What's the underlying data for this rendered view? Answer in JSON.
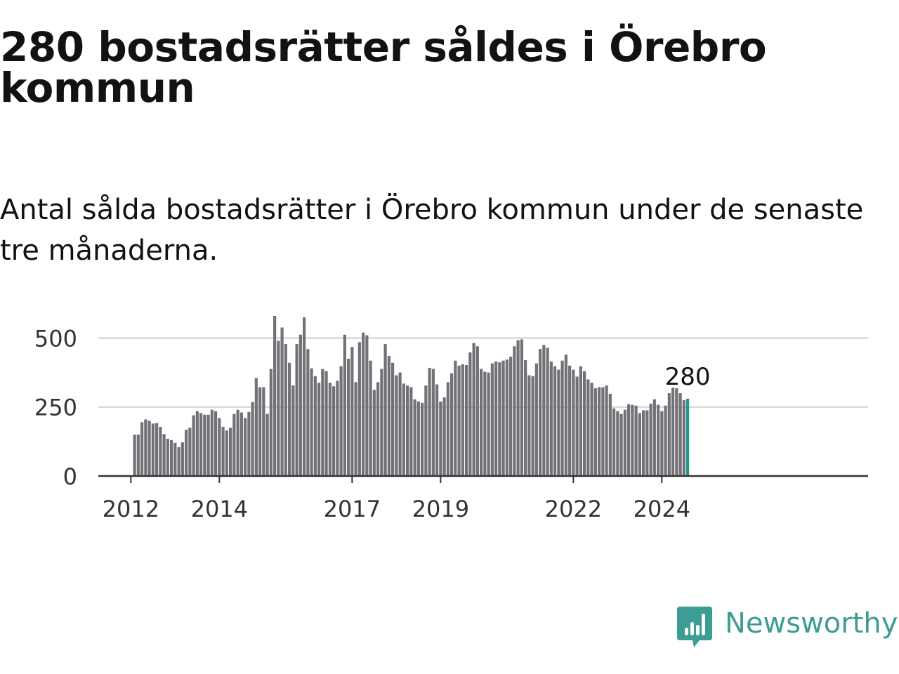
{
  "title": "280 bostadsrätter såldes i Örebro kommun",
  "subtitle": "Antal sålda bostadsrätter i Örebro kommun under de senaste tre månaderna.",
  "brand": {
    "name": "Newsworthy",
    "icon": "newsworthy-bar-chart-icon",
    "color": "#3d9c93"
  },
  "colors": {
    "bar": "#727177",
    "highlight": "#1a9b8c",
    "grid": "#d9d9d9",
    "axis": "#333333",
    "text": "#121212"
  },
  "chart_data": {
    "type": "bar",
    "title": "",
    "xlabel": "",
    "ylabel": "",
    "ylim": [
      0,
      580
    ],
    "yticks": [
      0,
      250,
      500
    ],
    "ytick_labels": [
      "0",
      "250",
      "500"
    ],
    "xticks": [
      "2012",
      "2014",
      "2017",
      "2019",
      "2022",
      "2024"
    ],
    "grid": true,
    "highlight_last": true,
    "last_label": "280",
    "values": [
      150,
      150,
      195,
      205,
      200,
      190,
      192,
      178,
      152,
      135,
      130,
      120,
      105,
      122,
      168,
      175,
      220,
      235,
      228,
      222,
      222,
      240,
      235,
      210,
      178,
      165,
      175,
      225,
      240,
      230,
      210,
      232,
      268,
      355,
      322,
      322,
      225,
      388,
      580,
      490,
      538,
      478,
      410,
      328,
      478,
      512,
      575,
      460,
      390,
      362,
      338,
      388,
      380,
      338,
      325,
      345,
      398,
      512,
      425,
      468,
      340,
      485,
      520,
      510,
      418,
      312,
      340,
      388,
      478,
      435,
      410,
      365,
      375,
      335,
      328,
      322,
      278,
      270,
      265,
      328,
      392,
      388,
      332,
      270,
      285,
      340,
      372,
      418,
      400,
      405,
      402,
      448,
      482,
      470,
      388,
      378,
      375,
      408,
      415,
      412,
      418,
      422,
      432,
      470,
      492,
      495,
      420,
      365,
      362,
      408,
      460,
      475,
      465,
      415,
      398,
      385,
      418,
      440,
      400,
      385,
      360,
      398,
      380,
      350,
      338,
      318,
      322,
      322,
      328,
      298,
      245,
      235,
      225,
      240,
      260,
      258,
      255,
      228,
      238,
      238,
      262,
      278,
      258,
      235,
      255,
      300,
      320,
      318,
      300,
      275,
      280
    ]
  }
}
